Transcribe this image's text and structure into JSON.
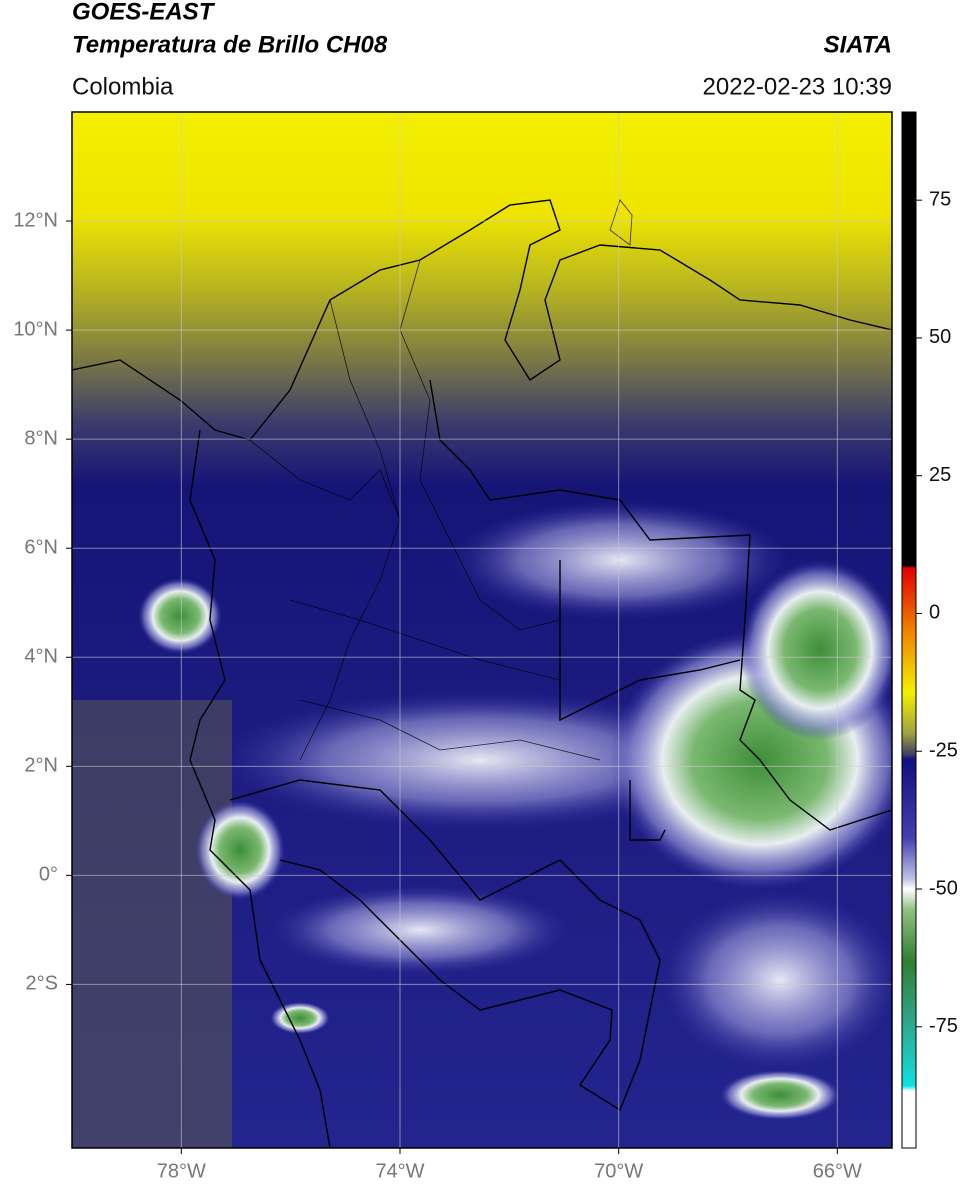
{
  "header": {
    "title": "GOES-EAST",
    "subtitle": "Temperatura de Brillo CH08",
    "source": "SIATA",
    "region": "Colombia",
    "datetime": "2022-02-23 10:39"
  },
  "map": {
    "lon_range": [
      -80,
      -65
    ],
    "lat_range": [
      -5,
      14
    ],
    "lon_ticks": [
      {
        "value": -78,
        "label": "78°W"
      },
      {
        "value": -74,
        "label": "74°W"
      },
      {
        "value": -70,
        "label": "70°W"
      },
      {
        "value": -66,
        "label": "66°W"
      }
    ],
    "lat_ticks": [
      {
        "value": 12,
        "label": "12°N"
      },
      {
        "value": 10,
        "label": "10°N"
      },
      {
        "value": 8,
        "label": "8°N"
      },
      {
        "value": 6,
        "label": "6°N"
      },
      {
        "value": 4,
        "label": "4°N"
      },
      {
        "value": 2,
        "label": "2°N"
      },
      {
        "value": 0,
        "label": "0°"
      },
      {
        "value": -2,
        "label": "2°S"
      }
    ],
    "grid": true
  },
  "colorbar": {
    "range": [
      -97,
      91
    ],
    "ticks": [
      75,
      50,
      25,
      0,
      -25,
      -50,
      -75
    ]
  }
}
